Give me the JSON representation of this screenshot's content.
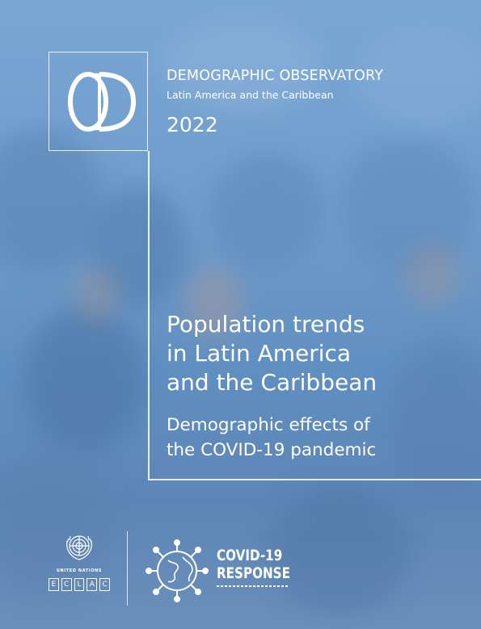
{
  "header": {
    "series_title": "DEMOGRAPHIC OBSERVATORY",
    "series_subtitle": "Latin America and the Caribbean",
    "year": "2022"
  },
  "title": {
    "line1": "Population trends",
    "line2": "in Latin America",
    "line3": "and the Caribbean"
  },
  "subtitle": {
    "line1": "Demographic effects of",
    "line2": "the COVID-19 pandemic"
  },
  "footer": {
    "un_label": "UNITED NATIONS",
    "eclac_letters": [
      "E",
      "C",
      "L",
      "A",
      "C"
    ],
    "covid_line1": "COVID-19",
    "covid_line2": "RESPONSE"
  },
  "colors": {
    "background": "#6e9ccb",
    "text": "#ffffff"
  }
}
